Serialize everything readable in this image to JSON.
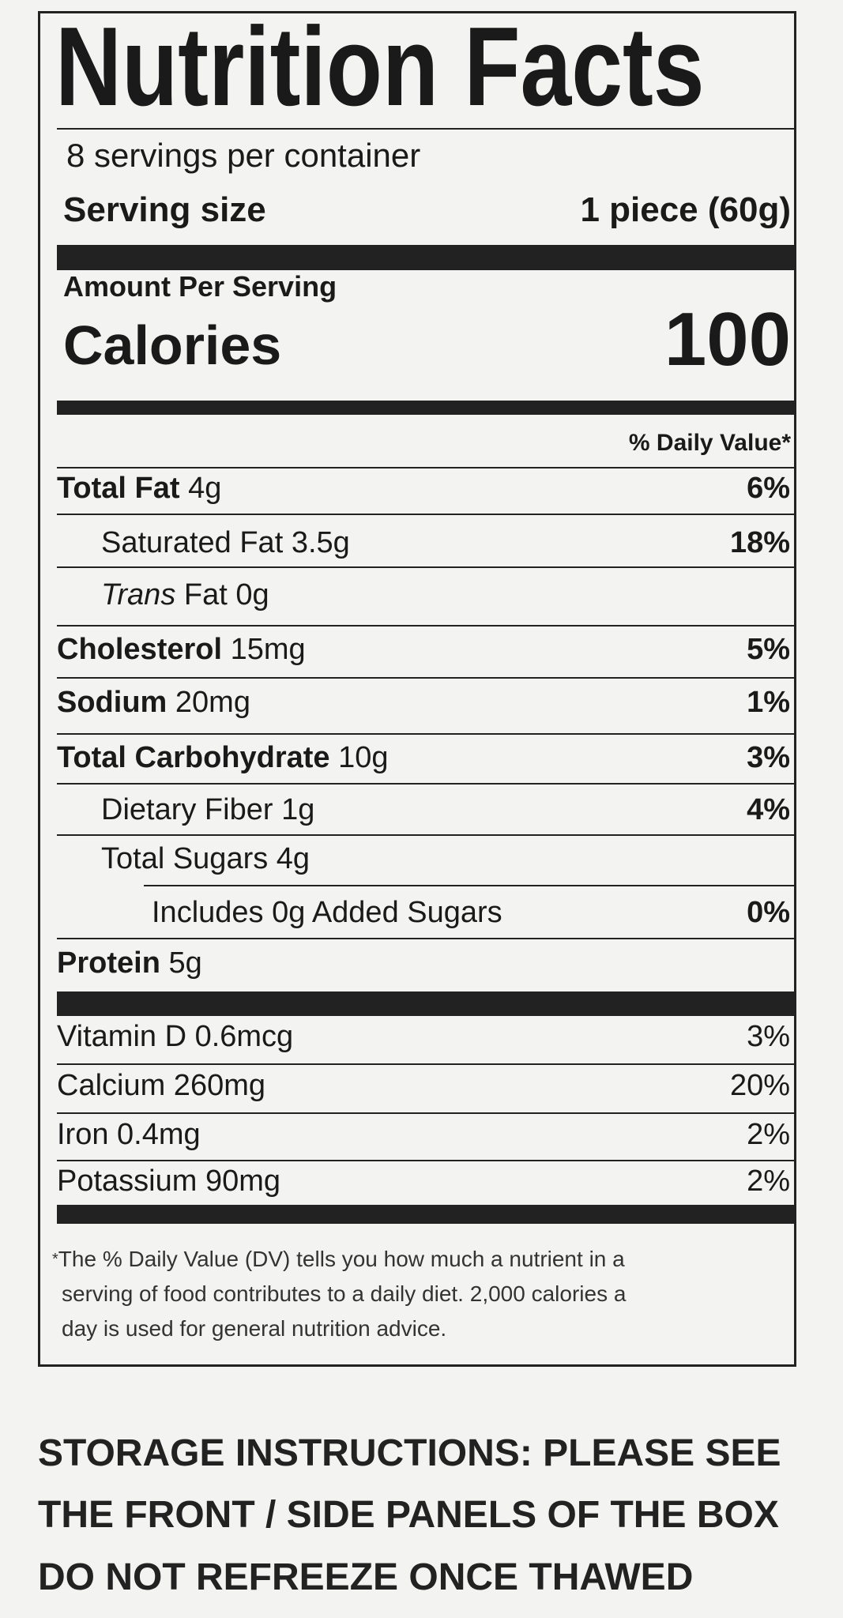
{
  "label": {
    "title": "Nutrition Facts",
    "servings_per_container": "8 servings per container",
    "serving_size_label": "Serving size",
    "serving_size_value": "1 piece (60g)",
    "amount_per_serving": "Amount Per Serving",
    "calories_label": "Calories",
    "calories_value": "100",
    "daily_value_header": "% Daily Value*",
    "nutrients": [
      {
        "name": "Total Fat",
        "amount": "4g",
        "dv": "6%"
      },
      {
        "name": "Saturated Fat",
        "amount": "3.5g",
        "dv": "18%"
      },
      {
        "name": "Trans",
        "name_suffix": "Fat",
        "amount": "0g",
        "dv": ""
      },
      {
        "name": "Cholesterol",
        "amount": "15mg",
        "dv": "5%"
      },
      {
        "name": "Sodium",
        "amount": "20mg",
        "dv": "1%"
      },
      {
        "name": "Total Carbohydrate",
        "amount": "10g",
        "dv": "3%"
      },
      {
        "name": "Dietary Fiber",
        "amount": "1g",
        "dv": "4%"
      },
      {
        "name": "Total Sugars",
        "amount": "4g",
        "dv": ""
      },
      {
        "name": "Includes 0g Added Sugars",
        "amount": "",
        "dv": "0%"
      },
      {
        "name": "Protein",
        "amount": "5g",
        "dv": ""
      }
    ],
    "vitamins": [
      {
        "text": "Vitamin D 0.6mcg",
        "dv": "3%"
      },
      {
        "text": "Calcium 260mg",
        "dv": "20%"
      },
      {
        "text": "Iron 0.4mg",
        "dv": "2%"
      },
      {
        "text": "Potassium 90mg",
        "dv": "2%"
      }
    ],
    "footnote_marker": "*",
    "footnote_lines": [
      "The % Daily Value (DV) tells you how much a nutrient in a",
      "serving of food contributes to a daily diet. 2,000 calories a",
      "day is used for general nutrition advice."
    ]
  },
  "storage": {
    "lines": [
      "STORAGE INSTRUCTIONS: PLEASE SEE",
      "THE FRONT / SIDE PANELS OF THE BOX",
      "DO NOT REFREEZE ONCE THAWED"
    ]
  }
}
